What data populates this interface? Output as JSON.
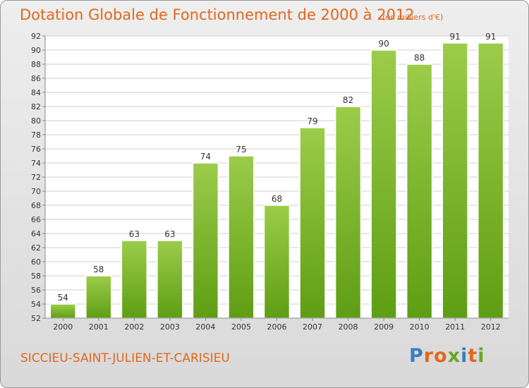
{
  "header": {
    "title": "Dotation Globale de Fonctionnement de 2000 à 2012",
    "unit": "(en milliers d'€)"
  },
  "footer": {
    "commune": "SICCIEU-SAINT-JULIEN-ET-CARISIEU",
    "logo_text": "Proxiti",
    "logo_colors": [
      "#3a7ebf",
      "#e2671c",
      "#e2671c",
      "#6aa621",
      "#3a7ebf",
      "#e2671c",
      "#6aa621"
    ]
  },
  "colors": {
    "bar_top": "#9ccc4a",
    "bar_bottom": "#5e9e14",
    "accent": "#e2671c",
    "grid": "#cfcfcf",
    "plot_bg": "#ffffff",
    "axis_text": "#333333"
  },
  "chart_data": {
    "type": "bar",
    "categories": [
      "2000",
      "2001",
      "2002",
      "2003",
      "2004",
      "2005",
      "2006",
      "2007",
      "2008",
      "2009",
      "2010",
      "2011",
      "2012"
    ],
    "values": [
      54,
      58,
      63,
      63,
      74,
      75,
      68,
      79,
      82,
      90,
      88,
      91,
      91
    ],
    "ylim": [
      52,
      92
    ],
    "yticks": [
      52,
      54,
      56,
      58,
      60,
      62,
      64,
      66,
      68,
      70,
      72,
      74,
      76,
      78,
      80,
      82,
      84,
      86,
      88,
      90,
      92
    ],
    "grid": true,
    "data_labels": true
  }
}
